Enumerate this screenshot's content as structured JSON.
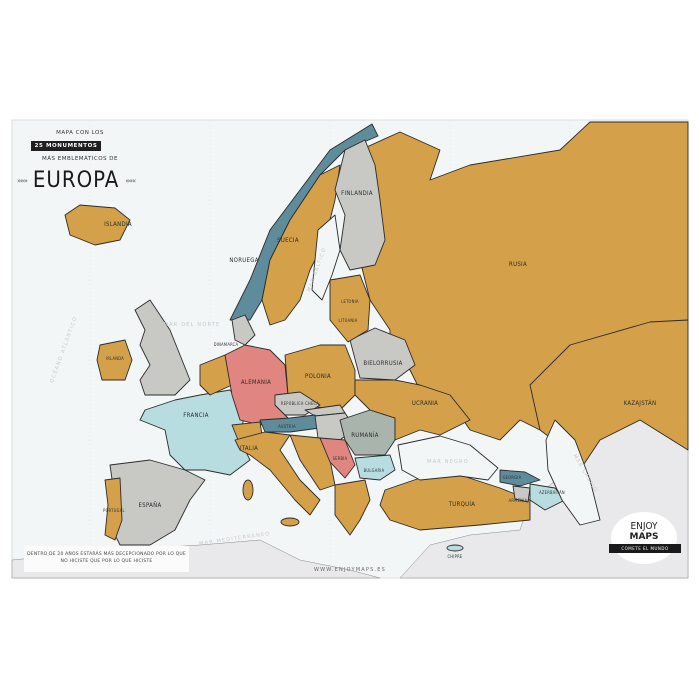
{
  "header": {
    "line1": "MAPA CON LOS",
    "highlight": "25 MONUMENTOS",
    "line2": "MÁS EMBLEMÁTICOS DE",
    "title": "EUROPA",
    "arrows_left": "»»»",
    "arrows_right": "«««"
  },
  "colors": {
    "mustard": "#d4a04a",
    "slate_blue": "#5f8c9b",
    "gray": "#c8c9c4",
    "pink": "#e0857f",
    "light_blue": "#b8dde0",
    "sage": "#a9b4ad",
    "sea": "#f3f6f7",
    "land_outside": "#e9e9eb"
  },
  "countries": {
    "islandia": "ISLANDIA",
    "noruega": "NORUEGA",
    "suecia": "SUECIA",
    "finlandia": "FINLANDIA",
    "rusia": "RUSIA",
    "kazajstan": "KAZAJSTÁN",
    "bielorrusia": "BIELORRUSIA",
    "ucrania": "UCRANIA",
    "polonia": "POLONIA",
    "alemania": "ALEMANIA",
    "francia": "FRANCIA",
    "espana": "ESPAÑA",
    "italia": "ITALIA",
    "rumania": "RUMANÍA",
    "turquia": "TURQUÍA",
    "republica_checa": "REPÚBLICA CHECA",
    "austria": "AUSTRIA",
    "bulgaria": "BULGARIA",
    "serbia": "SERBIA",
    "georgia": "GEORGIA",
    "azerbaiyan": "AZERBAIYÁN",
    "armenia": "ARMENIA",
    "chipre": "CHIPRE",
    "dinamarca": "DINAMARCA",
    "irlanda": "IRLANDA",
    "portugal": "PORTUGAL",
    "letonia": "LETONIA",
    "lituania": "LITUANIA"
  },
  "seas": {
    "atlantico": "OCÉANO ATLÁNTICO",
    "norte": "MAR DEL NORTE",
    "negro": "MAR NEGRO",
    "caspio": "MAR CASPIO",
    "mediterraneo": "MAR MEDITERRÁNEO",
    "baltico": "MAR BÁLTICO"
  },
  "quote": {
    "line1": "DENTRO DE 20 AÑOS ESTARÁS MÁS DECEPCIONADO POR LO QUE",
    "line2": "NO HICISTE QUE POR LO QUE HICISTE"
  },
  "website": "WWW.ENJOYMAPS.ES",
  "logo": {
    "line1": "ENJOY",
    "line2": "MAPS",
    "tagline": "COMETE EL MUNDO"
  }
}
